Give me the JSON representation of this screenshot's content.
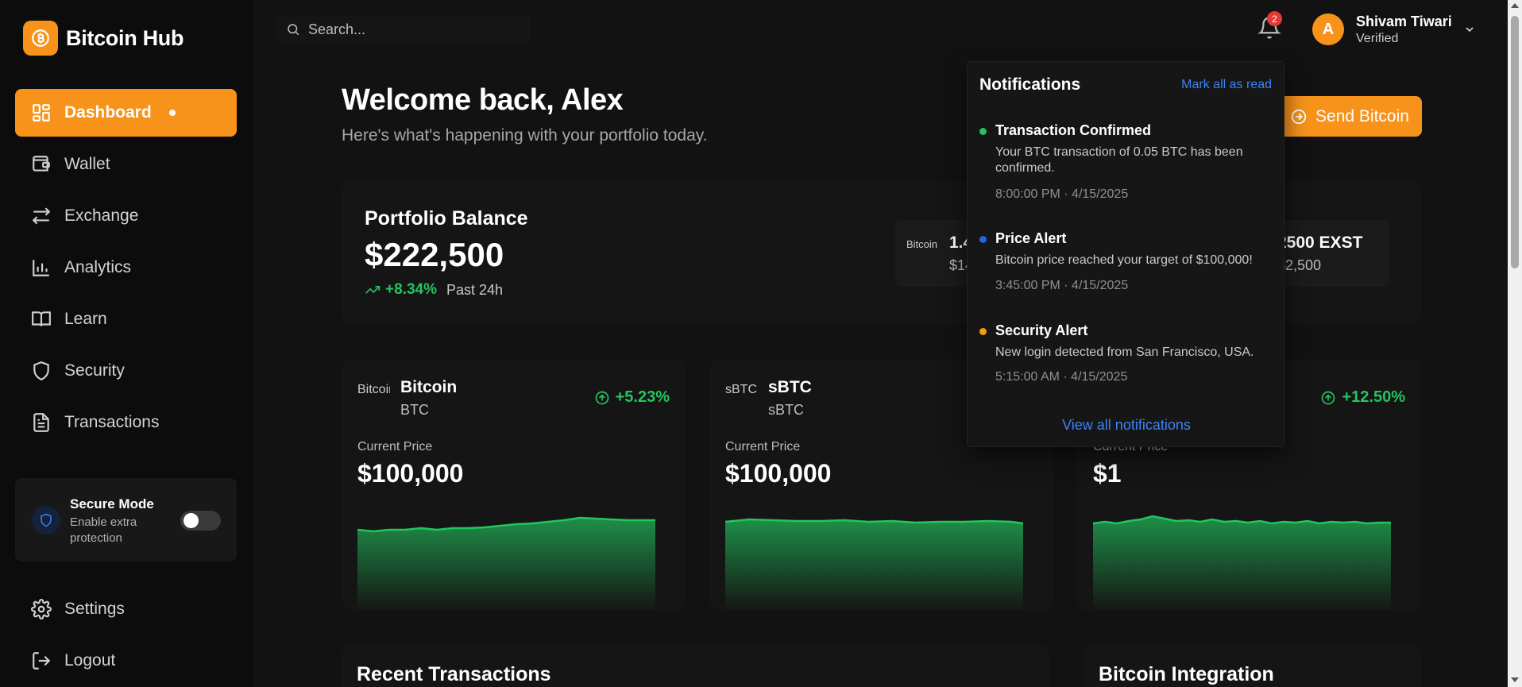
{
  "app": {
    "name": "Bitcoin Hub"
  },
  "sidebar": {
    "items": [
      {
        "label": "Dashboard",
        "icon": "dashboard-icon"
      },
      {
        "label": "Wallet",
        "icon": "wallet-icon"
      },
      {
        "label": "Exchange",
        "icon": "exchange-icon"
      },
      {
        "label": "Analytics",
        "icon": "bar-chart-icon"
      },
      {
        "label": "Learn",
        "icon": "book-icon"
      },
      {
        "label": "Security",
        "icon": "shield-icon"
      },
      {
        "label": "Transactions",
        "icon": "document-icon"
      }
    ],
    "secure_mode": {
      "title": "Secure Mode",
      "subtitle": "Enable extra protection",
      "enabled": false
    },
    "bottom_items": [
      {
        "label": "Settings",
        "icon": "gear-icon"
      },
      {
        "label": "Logout",
        "icon": "logout-icon"
      }
    ]
  },
  "topbar": {
    "search_placeholder": "Search...",
    "notification_count": "2",
    "user": {
      "initial": "A",
      "name": "Shivam Tiwari",
      "status": "Verified"
    }
  },
  "main": {
    "welcome_title": "Welcome back, Alex",
    "welcome_subtitle": "Here's what's happening with your portfolio today.",
    "send_button": "Send Bitcoin",
    "portfolio": {
      "title": "Portfolio Balance",
      "amount": "$222,500",
      "change": "+8.34%",
      "change_period": "Past 24h",
      "holdings": [
        {
          "img_alt": "Bitcoin",
          "qty": "1.4",
          "value": "$14"
        },
        {
          "img_alt": "",
          "qty": "2500 EXST",
          "value": "$2,500"
        }
      ]
    },
    "coins": [
      {
        "img_alt": "Bitcoin",
        "name": "Bitcoin",
        "symbol": "BTC",
        "change": "+5.23%",
        "price_label": "Current Price",
        "price": "$100,000"
      },
      {
        "img_alt": "sBTC",
        "name": "sBTC",
        "symbol": "sBTC",
        "change": "",
        "price_label": "Current Price",
        "price": "$100,000"
      },
      {
        "img_alt": "",
        "name": "",
        "symbol": "",
        "change": "+12.50%",
        "price_label": "Current Price",
        "price": "$1"
      }
    ],
    "recent_transactions_title": "Recent Transactions",
    "integration_title": "Bitcoin Integration"
  },
  "notifications": {
    "title": "Notifications",
    "mark_all": "Mark all as read",
    "items": [
      {
        "title": "Transaction Confirmed",
        "body": "Your BTC transaction of 0.05 BTC has been confirmed.",
        "time": "8:00:00 PM · 4/15/2025",
        "color": "#22c55e"
      },
      {
        "title": "Price Alert",
        "body": "Bitcoin price reached your target of $100,000!",
        "time": "3:45:00 PM · 4/15/2025",
        "color": "#2563eb"
      },
      {
        "title": "Security Alert",
        "body": "New login detected from San Francisco, USA.",
        "time": "5:15:00 AM · 4/15/2025",
        "color": "#f59e0b"
      }
    ],
    "view_all": "View all notifications"
  },
  "colors": {
    "accent": "#f7931a",
    "positive": "#22c55e",
    "link": "#3b82f6",
    "background": "#121212"
  }
}
